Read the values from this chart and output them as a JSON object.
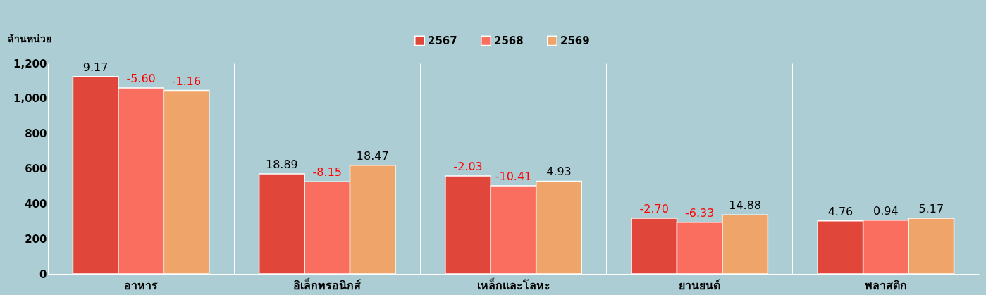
{
  "chart_data": {
    "type": "bar",
    "ylabel": "ล้านหน่วย",
    "categories": [
      "อาหาร",
      "อิเล็กทรอนิกส์",
      "เหล็กและโลหะ",
      "ยานยนต์",
      "พลาสติก"
    ],
    "series": [
      {
        "name": "2567",
        "color": "#e0463a",
        "values": [
          1125,
          570,
          558,
          317,
          302
        ]
      },
      {
        "name": "2568",
        "color": "#f96e5f",
        "values": [
          1060,
          525,
          502,
          294,
          306
        ]
      },
      {
        "name": "2569",
        "color": "#efa46a",
        "values": [
          1045,
          619,
          528,
          336,
          317
        ]
      }
    ],
    "annotations": [
      "9.17",
      "-5.60",
      "-1.16",
      "18.89",
      "-8.15",
      "18.47",
      "-2.03",
      "-10.41",
      "4.93",
      "-2.70",
      "-6.33",
      "14.88",
      "4.76",
      "0.94",
      "5.17"
    ],
    "ylim": [
      0,
      1200
    ],
    "yticks": [
      0,
      200,
      400,
      600,
      800,
      {
        "value": 1000,
        "label": "1,000"
      },
      {
        "value": 1200,
        "label": "1,200"
      }
    ],
    "grid": "x",
    "legend": "top"
  }
}
